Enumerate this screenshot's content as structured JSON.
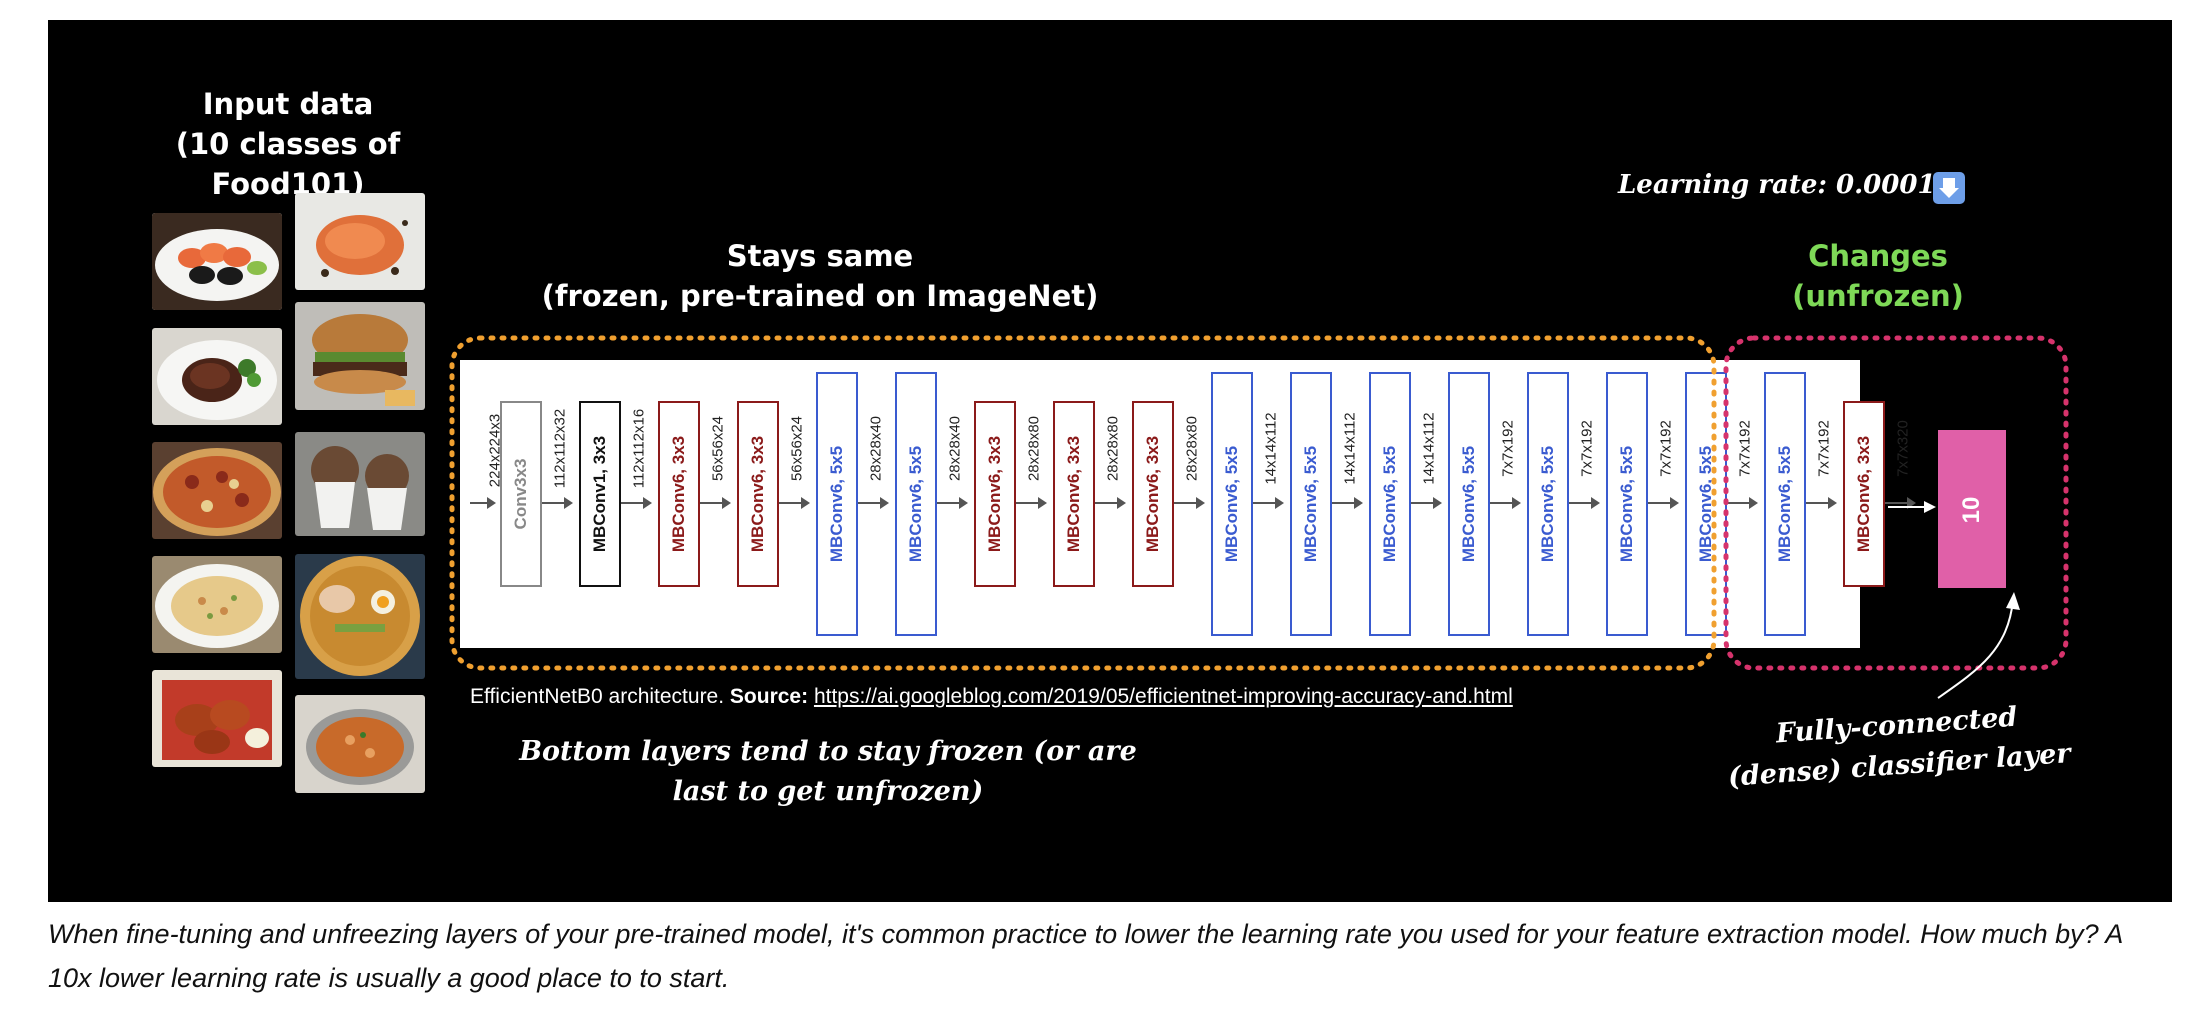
{
  "figure": {
    "input_title": "Input data",
    "input_subtitle": "(10 classes of Food101)",
    "frozen_title": "Stays same",
    "frozen_subtitle": "(frozen, pre-trained on ImageNet)",
    "unfrozen_title": "Changes",
    "unfrozen_subtitle": "(unfrozen)",
    "learning_rate": "Learning rate: 0.0001",
    "learning_rate_icon": "down-arrow-icon",
    "bottom_note_line1": "Bottom layers tend to stay frozen (or are",
    "bottom_note_line2": "last to get unfrozen)",
    "classifier_note_line1": "Fully-connected",
    "classifier_note_line2": "(dense) classifier layer",
    "classifier_output": "10",
    "source_prefix": "EfficientNetB0 architecture.",
    "source_label": "Source:",
    "source_url": "https://ai.googleblog.com/2019/05/efficientnet-improving-accuracy-and.html",
    "colors": {
      "frozen_outline": "#f0a030",
      "unfrozen_outline": "#d6336c",
      "classifier": "#e060a8",
      "unfrozen_text": "#7ed957",
      "mbconv6_5x5": "#3a5bd0",
      "mbconv6_3x3": "#8b1a1a"
    }
  },
  "architecture": {
    "input_dim": "224x224x3",
    "layers": [
      {
        "label": "Conv3x3",
        "out": "112x112x32"
      },
      {
        "label": "MBConv1, 3x3",
        "out": "112x112x16"
      },
      {
        "label": "MBConv6, 3x3",
        "out": "56x56x24"
      },
      {
        "label": "MBConv6, 3x3",
        "out": "56x56x24"
      },
      {
        "label": "MBConv6, 5x5",
        "out": "28x28x40"
      },
      {
        "label": "MBConv6, 5x5",
        "out": "28x28x40"
      },
      {
        "label": "MBConv6, 3x3",
        "out": "28x28x80"
      },
      {
        "label": "MBConv6, 3x3",
        "out": "28x28x80"
      },
      {
        "label": "MBConv6, 3x3",
        "out": "28x28x80"
      },
      {
        "label": "MBConv6, 5x5",
        "out": "14x14x112"
      },
      {
        "label": "MBConv6, 5x5",
        "out": "14x14x112"
      },
      {
        "label": "MBConv6, 5x5",
        "out": "14x14x112"
      },
      {
        "label": "MBConv6, 5x5",
        "out": "7x7x192"
      },
      {
        "label": "MBConv6, 5x5",
        "out": "7x7x192"
      },
      {
        "label": "MBConv6, 5x5",
        "out": "7x7x192"
      },
      {
        "label": "MBConv6, 5x5",
        "out": "7x7x192"
      },
      {
        "label": "MBConv6, 5x5",
        "out": "7x7x192"
      },
      {
        "label": "MBConv6, 3x3",
        "out": "7x7x320"
      }
    ]
  },
  "caption": {
    "text": "When fine-tuning and unfreezing layers of your pre-trained model, it's common practice to lower the learning rate you used for your feature extraction model. How much by? A 10x lower learning rate is usually a good place to to start."
  }
}
